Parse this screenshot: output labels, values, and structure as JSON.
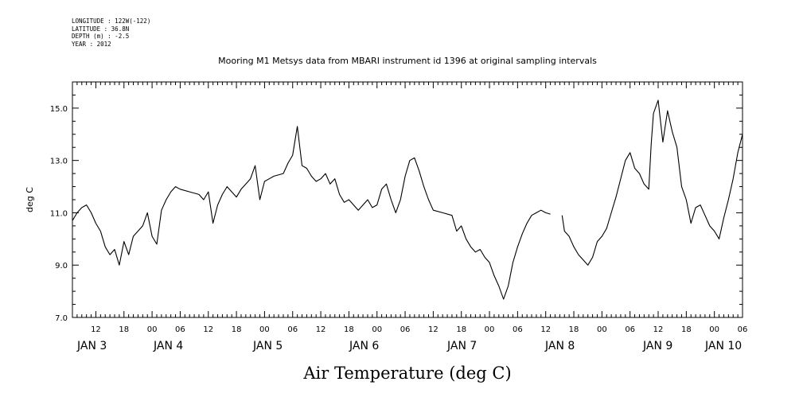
{
  "header": {
    "longitude": "LONGITUDE : 122W(-122)",
    "latitude": "LATITUDE : 36.8N",
    "depth": "DEPTH (m) : -2.5",
    "year": "YEAR : 2012"
  },
  "chart_data": {
    "type": "line",
    "title": "Mooring M1 Metsys data from MBARI instrument id 1396 at original sampling intervals",
    "xlabel": "Air Temperature (deg C)",
    "ylabel": "deg C",
    "xlim_hours": [
      7,
      150
    ],
    "ylim": [
      7.0,
      16.0
    ],
    "yticks_major": [
      "7.0",
      "9.0",
      "11.0",
      "13.0",
      "15.0"
    ],
    "hour_ticks": [
      {
        "h": 12,
        "label": "12"
      },
      {
        "h": 18,
        "label": "18"
      },
      {
        "h": 24,
        "label": "00"
      },
      {
        "h": 30,
        "label": "06"
      },
      {
        "h": 36,
        "label": "12"
      },
      {
        "h": 42,
        "label": "18"
      },
      {
        "h": 48,
        "label": "00"
      },
      {
        "h": 54,
        "label": "06"
      },
      {
        "h": 60,
        "label": "12"
      },
      {
        "h": 66,
        "label": "18"
      },
      {
        "h": 72,
        "label": "00"
      },
      {
        "h": 78,
        "label": "06"
      },
      {
        "h": 84,
        "label": "12"
      },
      {
        "h": 90,
        "label": "18"
      },
      {
        "h": 96,
        "label": "00"
      },
      {
        "h": 102,
        "label": "06"
      },
      {
        "h": 108,
        "label": "12"
      },
      {
        "h": 114,
        "label": "18"
      },
      {
        "h": 120,
        "label": "00"
      },
      {
        "h": 126,
        "label": "06"
      },
      {
        "h": 132,
        "label": "12"
      },
      {
        "h": 138,
        "label": "18"
      },
      {
        "h": 144,
        "label": "00"
      },
      {
        "h": 150,
        "label": "06"
      }
    ],
    "day_labels": [
      {
        "h": 10,
        "label": "JAN  3"
      },
      {
        "h": 34,
        "label": "JAN  4"
      },
      {
        "h": 58,
        "label": "JAN  5"
      },
      {
        "h": 82,
        "label": "JAN  6"
      },
      {
        "h": 106,
        "label": "JAN  7"
      },
      {
        "h": 130,
        "label": "JAN  8"
      },
      {
        "h": 154,
        "label": "JAN  9"
      },
      {
        "h": 178,
        "label": "JAN 10"
      }
    ],
    "series": [
      {
        "segments": [
          [
            [
              7.0,
              10.7
            ],
            [
              8.0,
              11.0
            ],
            [
              9.0,
              11.2
            ],
            [
              10.0,
              11.3
            ],
            [
              11.0,
              11.0
            ],
            [
              12.0,
              10.6
            ],
            [
              13.0,
              10.3
            ],
            [
              14.0,
              9.7
            ],
            [
              15.0,
              9.4
            ],
            [
              16.0,
              9.6
            ],
            [
              17.0,
              9.0
            ],
            [
              18.0,
              9.9
            ],
            [
              19.0,
              9.4
            ],
            [
              20.0,
              10.1
            ],
            [
              21.0,
              10.3
            ],
            [
              22.0,
              10.5
            ],
            [
              23.0,
              11.0
            ],
            [
              24.0,
              10.1
            ],
            [
              25.0,
              9.8
            ],
            [
              26.0,
              11.1
            ],
            [
              27.0,
              11.5
            ],
            [
              28.0,
              11.8
            ],
            [
              29.0,
              12.0
            ],
            [
              30.0,
              11.9
            ],
            [
              32.0,
              11.8
            ],
            [
              34.0,
              11.7
            ],
            [
              35.0,
              11.5
            ],
            [
              36.0,
              11.8
            ],
            [
              37.0,
              10.6
            ],
            [
              38.0,
              11.3
            ],
            [
              39.0,
              11.7
            ],
            [
              40.0,
              12.0
            ],
            [
              41.0,
              11.8
            ],
            [
              42.0,
              11.6
            ],
            [
              43.0,
              11.9
            ],
            [
              44.0,
              12.1
            ],
            [
              45.0,
              12.3
            ],
            [
              46.0,
              12.8
            ],
            [
              47.0,
              11.5
            ],
            [
              48.0,
              12.2
            ],
            [
              49.0,
              12.3
            ],
            [
              50.0,
              12.4
            ],
            [
              52.0,
              12.5
            ],
            [
              53.0,
              12.9
            ],
            [
              54.0,
              13.2
            ],
            [
              55.0,
              14.3
            ],
            [
              56.0,
              12.8
            ],
            [
              57.0,
              12.7
            ],
            [
              58.0,
              12.4
            ],
            [
              59.0,
              12.2
            ],
            [
              60.0,
              12.3
            ],
            [
              61.0,
              12.5
            ],
            [
              62.0,
              12.1
            ],
            [
              63.0,
              12.3
            ],
            [
              64.0,
              11.7
            ],
            [
              65.0,
              11.4
            ],
            [
              66.0,
              11.5
            ],
            [
              67.0,
              11.3
            ],
            [
              68.0,
              11.1
            ],
            [
              69.0,
              11.3
            ],
            [
              70.0,
              11.5
            ],
            [
              71.0,
              11.2
            ],
            [
              72.0,
              11.3
            ],
            [
              73.0,
              11.9
            ],
            [
              74.0,
              12.1
            ],
            [
              75.0,
              11.5
            ],
            [
              76.0,
              11.0
            ],
            [
              77.0,
              11.5
            ],
            [
              78.0,
              12.4
            ],
            [
              79.0,
              13.0
            ],
            [
              80.0,
              13.1
            ],
            [
              81.0,
              12.6
            ],
            [
              82.0,
              12.0
            ],
            [
              83.0,
              11.5
            ],
            [
              84.0,
              11.1
            ],
            [
              86.0,
              11.0
            ],
            [
              88.0,
              10.9
            ],
            [
              89.0,
              10.3
            ],
            [
              90.0,
              10.5
            ],
            [
              91.0,
              10.0
            ],
            [
              92.0,
              9.7
            ],
            [
              93.0,
              9.5
            ],
            [
              94.0,
              9.6
            ],
            [
              95.0,
              9.3
            ],
            [
              96.0,
              9.1
            ],
            [
              97.0,
              8.6
            ],
            [
              98.0,
              8.2
            ],
            [
              99.0,
              7.7
            ],
            [
              100.0,
              8.2
            ],
            [
              101.0,
              9.1
            ],
            [
              102.0,
              9.7
            ],
            [
              103.0,
              10.2
            ],
            [
              104.0,
              10.6
            ],
            [
              105.0,
              10.9
            ],
            [
              106.0,
              11.0
            ],
            [
              107.0,
              11.1
            ],
            [
              108.0,
              11.0
            ],
            [
              109.0,
              10.95
            ]
          ],
          [
            [
              111.5,
              10.9
            ],
            [
              112.0,
              10.3
            ],
            [
              113.0,
              10.1
            ],
            [
              114.0,
              9.7
            ],
            [
              115.0,
              9.4
            ],
            [
              116.0,
              9.2
            ],
            [
              117.0,
              9.0
            ],
            [
              118.0,
              9.3
            ],
            [
              119.0,
              9.9
            ],
            [
              120.0,
              10.1
            ],
            [
              121.0,
              10.4
            ],
            [
              122.0,
              11.0
            ],
            [
              123.0,
              11.6
            ],
            [
              124.0,
              12.3
            ],
            [
              125.0,
              13.0
            ],
            [
              126.0,
              13.3
            ],
            [
              127.0,
              12.7
            ],
            [
              128.0,
              12.5
            ],
            [
              129.0,
              12.1
            ],
            [
              130.0,
              11.9
            ],
            [
              130.5,
              13.6
            ],
            [
              131.0,
              14.8
            ],
            [
              132.0,
              15.3
            ],
            [
              133.0,
              13.7
            ],
            [
              134.0,
              14.9
            ],
            [
              135.0,
              14.1
            ],
            [
              136.0,
              13.5
            ],
            [
              137.0,
              12.0
            ],
            [
              138.0,
              11.5
            ],
            [
              139.0,
              10.6
            ],
            [
              140.0,
              11.2
            ],
            [
              141.0,
              11.3
            ],
            [
              142.0,
              10.9
            ],
            [
              143.0,
              10.5
            ],
            [
              144.0,
              10.3
            ],
            [
              145.0,
              10.0
            ],
            [
              146.0,
              10.8
            ],
            [
              147.0,
              11.5
            ],
            [
              148.0,
              12.3
            ],
            [
              149.0,
              13.3
            ],
            [
              150.0,
              14.0
            ]
          ]
        ]
      }
    ]
  }
}
